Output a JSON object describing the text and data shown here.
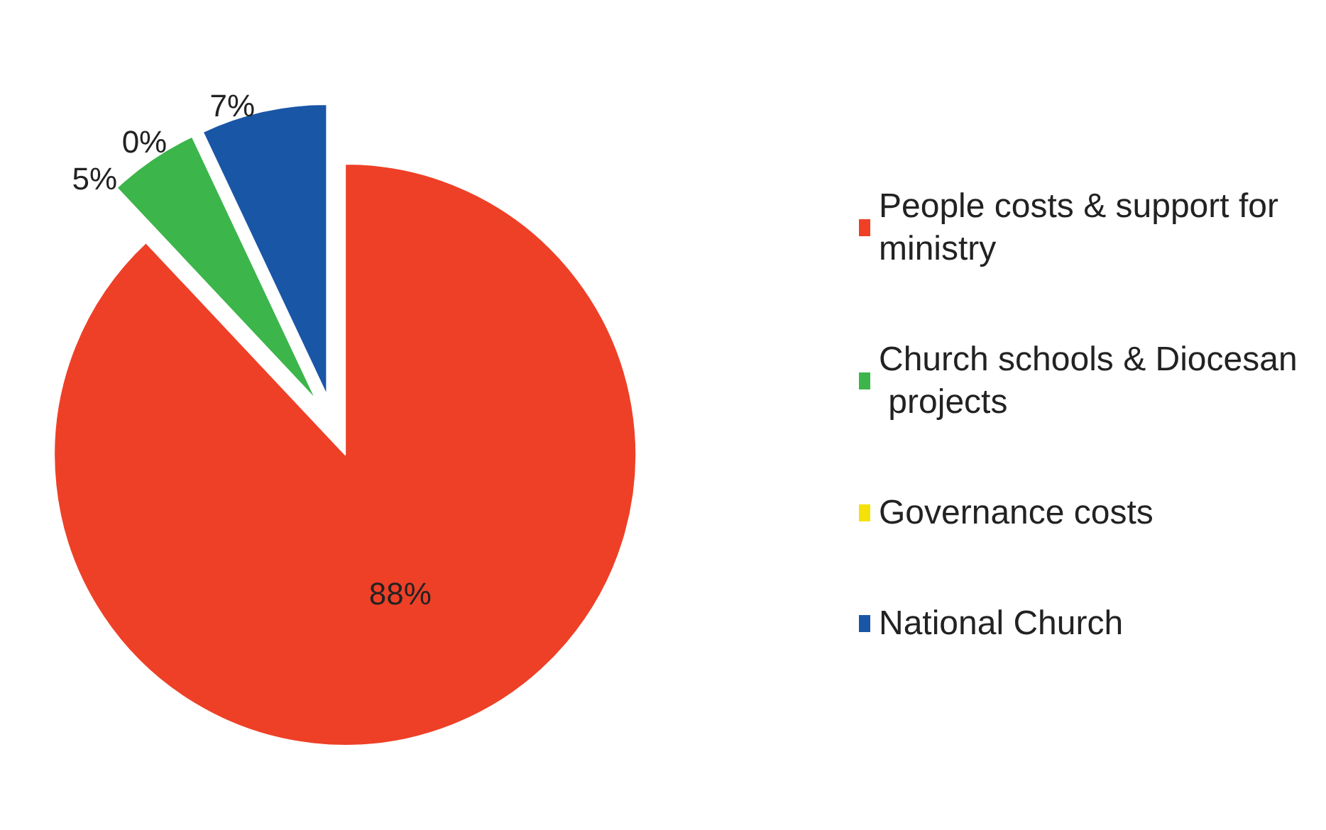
{
  "chart_data": {
    "type": "pie",
    "categories": [
      "People costs & support for ministry",
      "Church schools & Diocesan projects",
      "Governance costs",
      "National Church"
    ],
    "values": [
      88,
      5,
      0,
      7
    ],
    "colors": [
      "#ee4027",
      "#3cb54a",
      "#f5e10a",
      "#1a56a6"
    ],
    "value_labels": [
      "88%",
      "5%",
      "0%",
      "7%"
    ],
    "legend": "right"
  }
}
